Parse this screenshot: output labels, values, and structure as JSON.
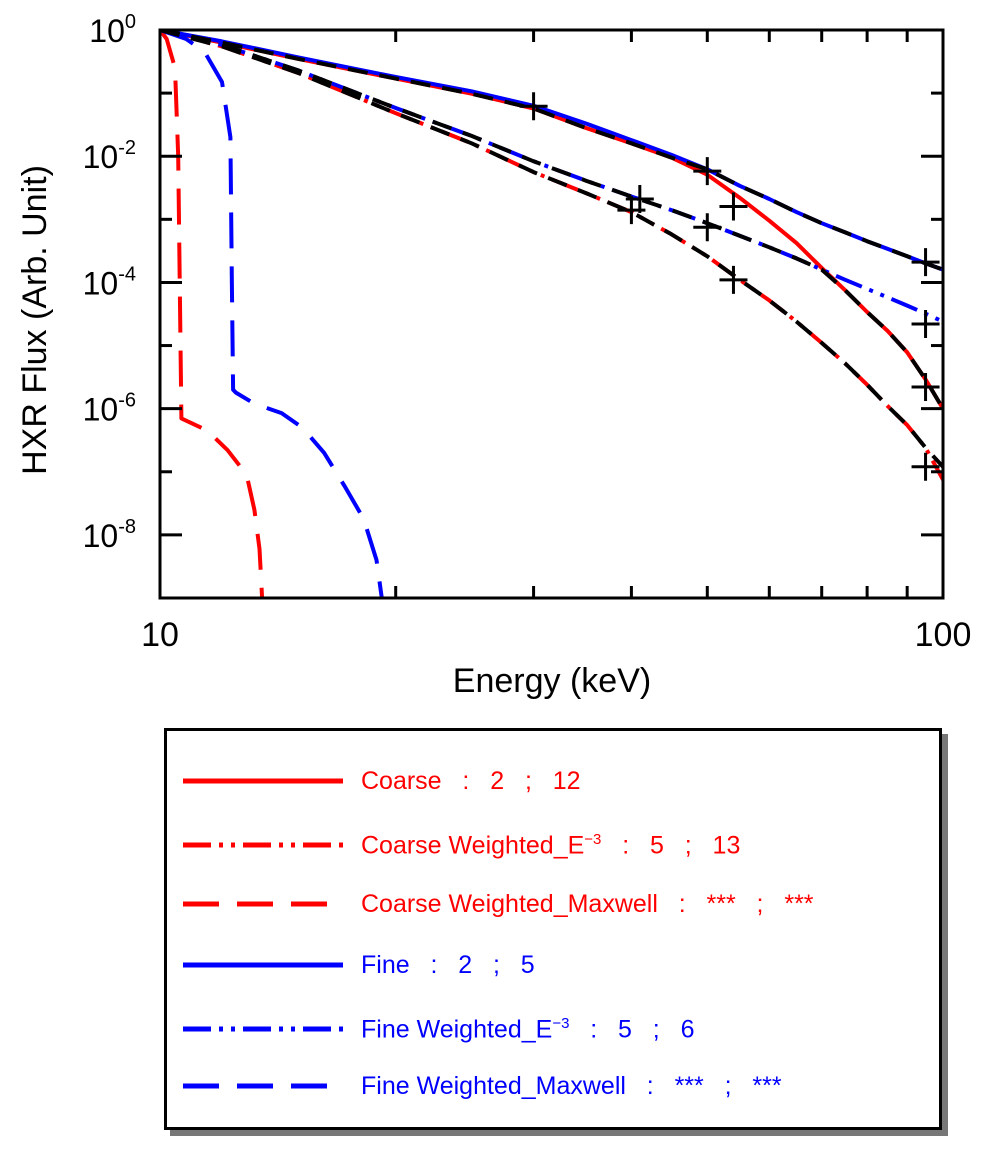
{
  "chart_data": {
    "type": "line",
    "xscale": "log",
    "yscale": "log",
    "xlim": [
      10,
      100
    ],
    "ylim": [
      1e-09,
      1
    ],
    "xlabel": "Energy (keV)",
    "ylabel": "HXR Flux (Arb. Unit)",
    "x_ticks": [
      {
        "value": 10,
        "label": "10"
      },
      {
        "value": 100,
        "label": "100"
      }
    ],
    "y_ticks": [
      {
        "value": 1,
        "base": "10",
        "exp": "0"
      },
      {
        "value": 0.01,
        "base": "10",
        "exp": "-2"
      },
      {
        "value": 0.0001,
        "base": "10",
        "exp": "-4"
      },
      {
        "value": 1e-06,
        "base": "10",
        "exp": "-6"
      },
      {
        "value": 1e-08,
        "base": "10",
        "exp": "-8"
      }
    ],
    "series": [
      {
        "key": "coarse",
        "name": "Coarse",
        "color": "#ff0000",
        "dash": "solid",
        "legend_parts": {
          "name": "Coarse",
          "sup": "",
          "v1": "2",
          "v2": "12"
        },
        "x": [
          10,
          12,
          15,
          20,
          25,
          30,
          35,
          40,
          45,
          50,
          55,
          60,
          65,
          70,
          75,
          80,
          85,
          90,
          95,
          100
        ],
        "y": [
          1.0,
          0.63,
          0.35,
          0.17,
          0.098,
          0.057,
          0.028,
          0.016,
          0.0095,
          0.0051,
          0.0022,
          0.00095,
          0.00042,
          0.00017,
          7.5e-05,
          3.4e-05,
          1.7e-05,
          7.8e-06,
          2.9e-06,
          1e-06
        ]
      },
      {
        "key": "coarse_e3",
        "name": "Coarse Weighted_E",
        "color": "#ff0000",
        "dash": "dashdotdot",
        "legend_parts": {
          "name": "Coarse Weighted_E",
          "sup": "−3",
          "v1": "5",
          "v2": "13"
        },
        "x": [
          10,
          12,
          15,
          20,
          25,
          30,
          35,
          40,
          45,
          50,
          55,
          60,
          65,
          70,
          75,
          80,
          85,
          90,
          95,
          100
        ],
        "y": [
          1.0,
          0.55,
          0.21,
          0.048,
          0.016,
          0.0056,
          0.0026,
          0.0013,
          0.00058,
          0.00026,
          0.00011,
          5.2e-05,
          2.4e-05,
          1.1e-05,
          5.2e-06,
          2.4e-06,
          1.1e-06,
          5.5e-07,
          2.4e-07,
          7.5e-08
        ]
      },
      {
        "key": "coarse_max",
        "name": "Coarse Weighted_Maxwell",
        "color": "#ff0000",
        "dash": "longdash",
        "legend_parts": {
          "name": "Coarse Weighted_Maxwell",
          "sup": "",
          "v1": "***",
          "v2": "***"
        },
        "x": [
          10,
          10.2,
          10.45,
          10.55,
          10.65,
          11.5,
          12.2,
          12.9,
          13.2,
          13.4,
          13.5
        ],
        "y": [
          1.0,
          0.72,
          0.25,
          0.01,
          7e-07,
          4.5e-07,
          2.2e-07,
          9e-08,
          2.5e-08,
          6e-09,
          1e-09
        ]
      },
      {
        "key": "fine",
        "name": "Fine",
        "color": "#0000ff",
        "dash": "solid",
        "legend_parts": {
          "name": "Fine",
          "sup": "",
          "v1": "2",
          "v2": "5"
        },
        "x": [
          10,
          12,
          15,
          20,
          25,
          30,
          35,
          40,
          45,
          50,
          55,
          60,
          65,
          70,
          75,
          80,
          85,
          90,
          95,
          100
        ],
        "y": [
          1.0,
          0.66,
          0.37,
          0.18,
          0.107,
          0.063,
          0.033,
          0.018,
          0.0105,
          0.0062,
          0.0034,
          0.0021,
          0.0013,
          0.00087,
          0.00062,
          0.00045,
          0.00034,
          0.00026,
          0.0002,
          0.00016
        ]
      },
      {
        "key": "fine_e3",
        "name": "Fine Weighted_E",
        "color": "#0000ff",
        "dash": "dashdotdot",
        "legend_parts": {
          "name": "Fine Weighted_E",
          "sup": "−3",
          "v1": "5",
          "v2": "6"
        },
        "x": [
          10,
          12,
          15,
          20,
          25,
          30,
          35,
          40,
          45,
          50,
          55,
          60,
          65,
          70,
          75,
          80,
          85,
          90,
          95,
          100
        ],
        "y": [
          1.0,
          0.58,
          0.23,
          0.058,
          0.021,
          0.0083,
          0.0041,
          0.0023,
          0.0014,
          0.00087,
          0.00055,
          0.00036,
          0.00024,
          0.00016,
          0.00011,
          7.9e-05,
          5.8e-05,
          4.3e-05,
          3.2e-05,
          2.4e-05
        ]
      },
      {
        "key": "fine_max",
        "name": "Fine Weighted_Maxwell",
        "color": "#0000ff",
        "dash": "longdash",
        "legend_parts": {
          "name": "Fine Weighted_Maxwell",
          "sup": "",
          "v1": "***",
          "v2": "***"
        },
        "x": [
          10,
          10.8,
          11.4,
          12.0,
          12.3,
          12.35,
          12.4,
          12.5,
          13.2,
          14.3,
          15.2,
          16.2,
          17.2,
          18.2,
          18.9,
          19.2
        ],
        "y": [
          1.0,
          0.72,
          0.45,
          0.15,
          0.02,
          0.00012,
          2e-06,
          1.8e-06,
          1.2e-06,
          8.5e-07,
          5e-07,
          2e-07,
          6e-08,
          1.8e-08,
          4e-09,
          1e-09
        ]
      }
    ],
    "reference_series": [
      {
        "name": "Black dashed overlay (upper)",
        "color": "#000000",
        "dash": "dashed",
        "x": [
          10,
          12,
          15,
          20,
          25,
          30,
          35,
          40,
          45,
          50,
          55,
          60,
          65,
          70,
          75,
          80,
          85,
          90,
          95,
          100
        ],
        "y": [
          1.0,
          0.63,
          0.35,
          0.17,
          0.098,
          0.057,
          0.028,
          0.016,
          0.0095,
          0.0062,
          0.0034,
          0.0021,
          0.0013,
          0.00087,
          0.00062,
          0.00045,
          0.00034,
          0.00026,
          0.0002,
          0.00016
        ]
      },
      {
        "name": "Black dashed overlay (middle)",
        "color": "#000000",
        "dash": "dashed",
        "x": [
          10,
          12,
          15,
          20,
          25,
          30,
          35,
          40,
          45,
          50,
          55,
          60,
          65,
          70,
          75,
          80,
          85,
          90,
          95,
          100
        ],
        "y": [
          1.0,
          0.58,
          0.23,
          0.058,
          0.021,
          0.0083,
          0.0041,
          0.0023,
          0.0014,
          0.00087,
          0.00055,
          0.00036,
          0.00024,
          0.00016,
          7.5e-05,
          3.4e-05,
          1.7e-05,
          7.8e-06,
          2.9e-06,
          1e-06
        ]
      },
      {
        "name": "Black dashed overlay (lower)",
        "color": "#000000",
        "dash": "dashed",
        "x": [
          10,
          12,
          15,
          20,
          25,
          30,
          35,
          40,
          45,
          50,
          55,
          60,
          65,
          70,
          75,
          80,
          85,
          90,
          95,
          100
        ],
        "y": [
          1.0,
          0.55,
          0.21,
          0.048,
          0.016,
          0.0056,
          0.0026,
          0.0013,
          0.00058,
          0.00026,
          0.00011,
          5.2e-05,
          2.4e-05,
          1.1e-05,
          5.2e-06,
          2.4e-06,
          1.1e-06,
          5.5e-07,
          2.4e-07,
          1.2e-07
        ]
      }
    ],
    "markers": {
      "symbol": "+",
      "color": "#000000",
      "points": [
        {
          "x": 30,
          "y": 0.062
        },
        {
          "x": 40,
          "y": 0.0014
        },
        {
          "x": 41,
          "y": 0.0021
        },
        {
          "x": 50,
          "y": 0.0058
        },
        {
          "x": 50,
          "y": 0.00075
        },
        {
          "x": 54,
          "y": 0.0016
        },
        {
          "x": 54,
          "y": 0.00011
        },
        {
          "x": 95,
          "y": 0.00021
        },
        {
          "x": 95,
          "y": 2.2e-05
        },
        {
          "x": 95,
          "y": 2.2e-06
        },
        {
          "x": 95,
          "y": 1.2e-07
        }
      ]
    },
    "legend": {
      "position": "below",
      "separator": ":",
      "value_separator": ";"
    }
  }
}
